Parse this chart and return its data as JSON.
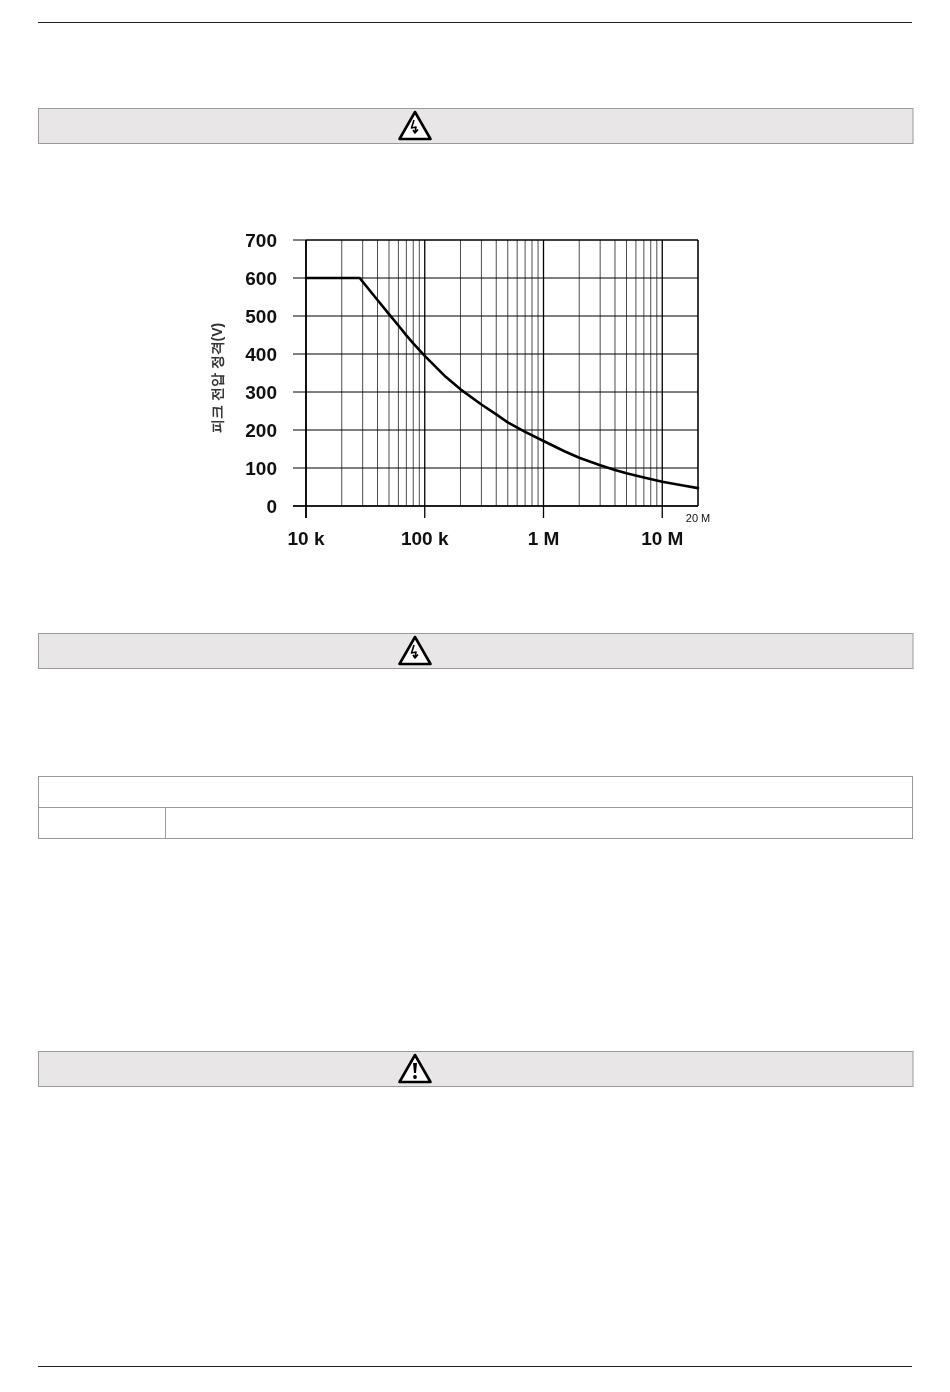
{
  "chart_data": {
    "type": "line",
    "ylabel": "피크 전압 정격(V)",
    "x": [
      10000,
      28300,
      40000,
      50000,
      60000,
      70000,
      80000,
      100000,
      150000,
      200000,
      300000,
      400000,
      500000,
      700000,
      1000000,
      1500000,
      2000000,
      3000000,
      4000000,
      5000000,
      7000000,
      10000000,
      15000000,
      20000000
    ],
    "values": [
      600,
      600,
      542,
      505,
      475,
      449,
      428,
      395,
      340,
      307,
      267,
      241,
      220,
      195,
      171,
      144,
      127,
      107,
      95,
      86,
      75,
      64,
      54,
      47
    ],
    "color": "#000000",
    "log": "x",
    "xlim": [
      10000,
      20000000
    ],
    "xticks": [
      {
        "value": 10000,
        "label": "10 k"
      },
      {
        "value": 100000,
        "label": "100 k"
      },
      {
        "value": 1000000,
        "label": "1 M"
      },
      {
        "value": 10000000,
        "label": "10 M"
      }
    ],
    "ylim": [
      0,
      700
    ],
    "yticks": [
      0,
      100,
      200,
      300,
      400,
      500,
      600,
      700
    ],
    "annotations": [
      "20 M"
    ],
    "grid": true
  }
}
